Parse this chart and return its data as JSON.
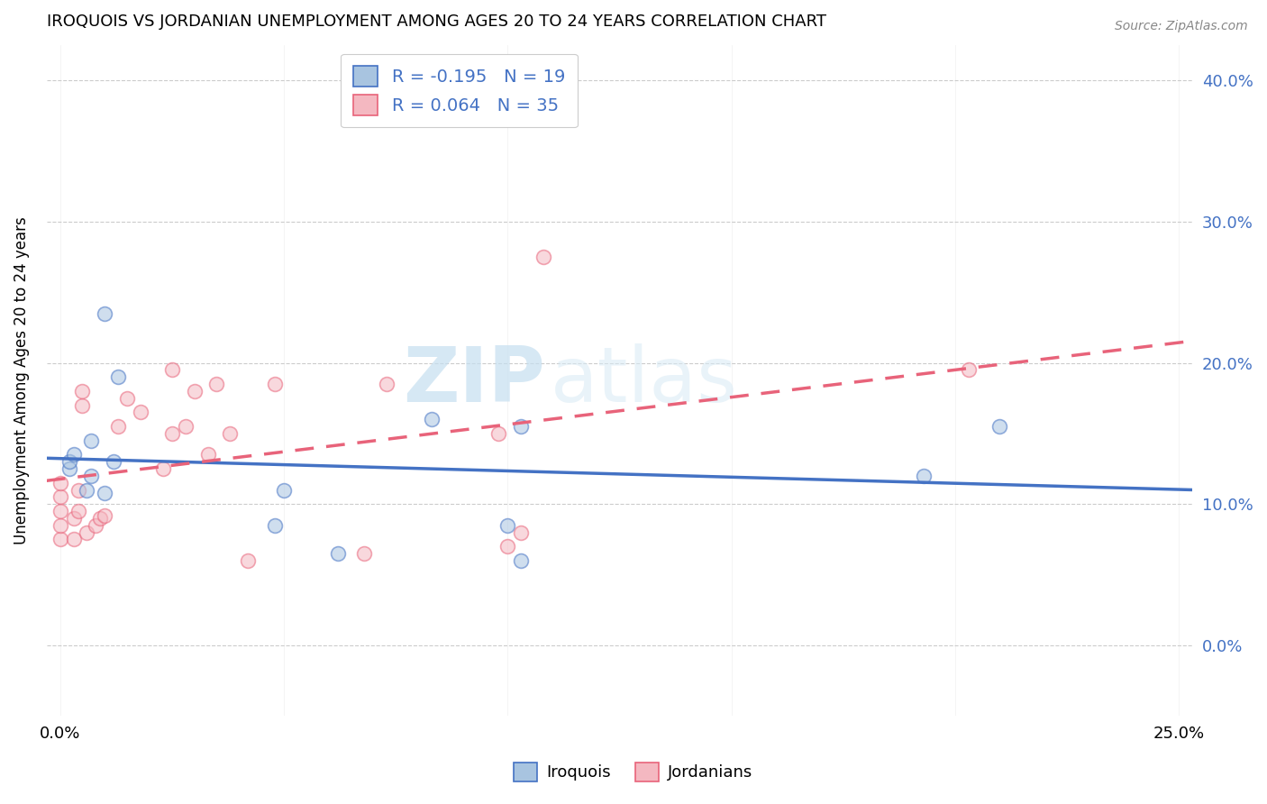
{
  "title": "IROQUOIS VS JORDANIAN UNEMPLOYMENT AMONG AGES 20 TO 24 YEARS CORRELATION CHART",
  "source": "Source: ZipAtlas.com",
  "ylabel": "Unemployment Among Ages 20 to 24 years",
  "xlabel": "",
  "xlim": [
    -0.003,
    0.253
  ],
  "ylim": [
    -0.05,
    0.425
  ],
  "ytick_values": [
    0.0,
    0.1,
    0.2,
    0.3,
    0.4
  ],
  "xtick_values": [
    0.0,
    0.05,
    0.1,
    0.15,
    0.2,
    0.25
  ],
  "iroquois_x": [
    0.002,
    0.002,
    0.003,
    0.006,
    0.007,
    0.007,
    0.01,
    0.01,
    0.012,
    0.013,
    0.048,
    0.05,
    0.062,
    0.083,
    0.1,
    0.103,
    0.103,
    0.193,
    0.21
  ],
  "iroquois_y": [
    0.125,
    0.13,
    0.135,
    0.11,
    0.12,
    0.145,
    0.108,
    0.235,
    0.13,
    0.19,
    0.085,
    0.11,
    0.065,
    0.16,
    0.085,
    0.155,
    0.06,
    0.12,
    0.155
  ],
  "jordanian_x": [
    0.0,
    0.0,
    0.0,
    0.0,
    0.0,
    0.003,
    0.003,
    0.004,
    0.004,
    0.005,
    0.005,
    0.006,
    0.008,
    0.009,
    0.01,
    0.013,
    0.015,
    0.018,
    0.023,
    0.025,
    0.025,
    0.028,
    0.03,
    0.033,
    0.035,
    0.038,
    0.042,
    0.048,
    0.068,
    0.073,
    0.098,
    0.1,
    0.103,
    0.108,
    0.203
  ],
  "jordanian_y": [
    0.075,
    0.085,
    0.095,
    0.105,
    0.115,
    0.075,
    0.09,
    0.095,
    0.11,
    0.17,
    0.18,
    0.08,
    0.085,
    0.09,
    0.092,
    0.155,
    0.175,
    0.165,
    0.125,
    0.15,
    0.195,
    0.155,
    0.18,
    0.135,
    0.185,
    0.15,
    0.06,
    0.185,
    0.065,
    0.185,
    0.15,
    0.07,
    0.08,
    0.275,
    0.195
  ],
  "iroquois_color": "#a8c4e0",
  "jordanian_color": "#f4b8c1",
  "iroquois_line_color": "#4472c4",
  "jordanian_line_color": "#e8637a",
  "legend_iroquois_R": -0.195,
  "legend_iroquois_N": 19,
  "legend_jordanian_R": 0.064,
  "legend_jordanian_N": 35,
  "watermark_zip": "ZIP",
  "watermark_atlas": "atlas",
  "marker_size": 130,
  "marker_alpha": 0.55,
  "background_color": "#ffffff"
}
